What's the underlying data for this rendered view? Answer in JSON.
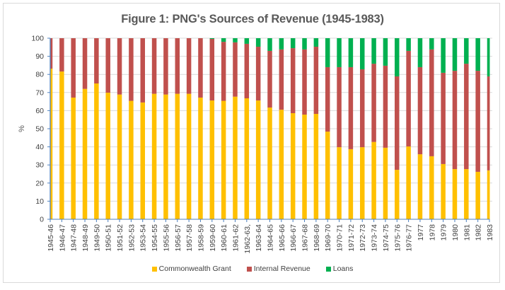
{
  "chart_data": {
    "type": "bar",
    "stacked": true,
    "title": "Figure 1: PNG's Sources of Revenue (1945-1983)",
    "xlabel": "",
    "ylabel": "%",
    "ylim": [
      0,
      100
    ],
    "yticks": [
      0,
      10,
      20,
      30,
      40,
      50,
      60,
      70,
      80,
      90,
      100
    ],
    "grid": "horizontal",
    "legend_position": "bottom",
    "categories": [
      "1945-46",
      "1946-47",
      "1947-48",
      "1948-49",
      "1949-50",
      "1950-51",
      "1951-52",
      "1952-53",
      "1953-54",
      "1954-55",
      "1955-56",
      "1956-57",
      "1957-58",
      "1958-59",
      "1959-60",
      "1960-61",
      "1961-62",
      "1962-63,",
      "1963-64",
      "1964-65",
      "1965-66",
      "1966-67",
      "1967-68",
      "1968-69",
      "1969-70",
      "1970-71",
      "1971-72",
      "1972-73",
      "1973-74",
      "1974-75",
      "1975-76",
      "1976-77",
      "1977",
      "1978",
      "1979",
      "1980",
      "1981",
      "1982",
      "1983"
    ],
    "series": [
      {
        "name": "Commonwealth Grant",
        "color": "#ffc000",
        "values": [
          83.2,
          81.6,
          67.2,
          72.0,
          75.0,
          69.9,
          68.9,
          65.4,
          64.5,
          69.3,
          68.9,
          69.3,
          69.3,
          67.2,
          65.6,
          65.4,
          67.7,
          66.8,
          65.6,
          61.7,
          60.5,
          58.6,
          57.8,
          58.2,
          48.4,
          39.8,
          38.7,
          39.8,
          42.7,
          39.5,
          27.3,
          40.2,
          35.9,
          34.8,
          30.5,
          27.7,
          27.7,
          26.2,
          27.0
        ]
      },
      {
        "name": "Internal Revenue",
        "color": "#c0504d",
        "values": [
          16.8,
          18.4,
          32.8,
          28.0,
          25.0,
          30.1,
          31.1,
          34.6,
          35.5,
          30.7,
          31.1,
          30.7,
          30.7,
          32.8,
          34.0,
          32.6,
          30.0,
          30.1,
          29.7,
          31.3,
          33.3,
          35.9,
          36.0,
          37.1,
          35.6,
          44.2,
          45.3,
          43.0,
          43.2,
          45.3,
          51.6,
          52.8,
          48.1,
          59.0,
          50.4,
          54.3,
          58.2,
          55.8,
          51.9
        ]
      },
      {
        "name": "Loans",
        "color": "#00b050",
        "values": [
          0,
          0,
          0,
          0,
          0,
          0,
          0,
          0,
          0,
          0,
          0,
          0,
          0,
          0,
          0.4,
          2.0,
          2.3,
          3.1,
          4.7,
          7.0,
          6.2,
          5.5,
          6.2,
          4.7,
          16.0,
          16.0,
          16.0,
          17.2,
          14.1,
          15.2,
          21.1,
          7.0,
          16.0,
          6.2,
          19.1,
          18.0,
          14.1,
          18.0,
          21.1
        ]
      }
    ]
  }
}
